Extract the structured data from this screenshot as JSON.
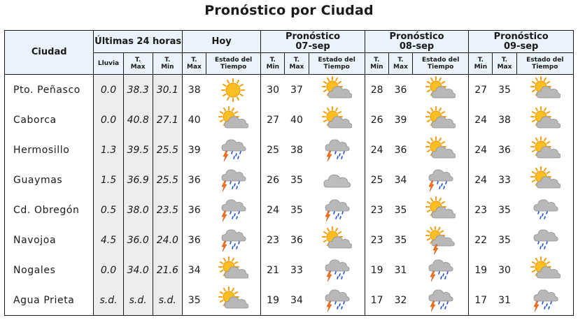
{
  "title": "Pronóstico por Ciudad",
  "headers": {
    "city": "Ciudad",
    "last24": "Últimas 24 horas",
    "today": "Hoy",
    "forecasts": [
      {
        "line1": "Pronóstico",
        "line2": "07-sep"
      },
      {
        "line1": "Pronóstico",
        "line2": "08-sep"
      },
      {
        "line1": "Pronóstico",
        "line2": "09-sep"
      }
    ],
    "rain": "Lluvia",
    "tmax_a": "T.",
    "tmax_b": "Max",
    "tmin_a": "T.",
    "tmin_b": "Min",
    "state_a": "Estado del",
    "state_b": "Tiempo"
  },
  "rows": [
    {
      "city": "Pto. Peñasco",
      "rain": "0.0",
      "tmax": "38.3",
      "tmin": "30.1",
      "today": {
        "tmax": "38",
        "icon": "sunny-icon"
      },
      "f": [
        {
          "tmin": "30",
          "tmax": "37",
          "icon": "sun-cloud-icon"
        },
        {
          "tmin": "28",
          "tmax": "36",
          "icon": "sun-cloud-icon"
        },
        {
          "tmin": "27",
          "tmax": "35",
          "icon": "sun-cloud-icon"
        }
      ]
    },
    {
      "city": "Caborca",
      "rain": "0.0",
      "tmax": "40.8",
      "tmin": "27.1",
      "today": {
        "tmax": "40",
        "icon": "sun-cloud-icon"
      },
      "f": [
        {
          "tmin": "27",
          "tmax": "40",
          "icon": "sun-cloud-icon"
        },
        {
          "tmin": "26",
          "tmax": "39",
          "icon": "sun-cloud-icon"
        },
        {
          "tmin": "24",
          "tmax": "38",
          "icon": "sun-cloud-icon"
        }
      ]
    },
    {
      "city": "Hermosillo",
      "rain": "1.3",
      "tmax": "39.5",
      "tmin": "25.5",
      "today": {
        "tmax": "39",
        "icon": "storm-icon"
      },
      "f": [
        {
          "tmin": "25",
          "tmax": "38",
          "icon": "storm-icon"
        },
        {
          "tmin": "24",
          "tmax": "36",
          "icon": "sun-cloud-icon"
        },
        {
          "tmin": "24",
          "tmax": "36",
          "icon": "sun-cloud-icon"
        }
      ]
    },
    {
      "city": "Guaymas",
      "rain": "1.5",
      "tmax": "36.9",
      "tmin": "25.5",
      "today": {
        "tmax": "36",
        "icon": "storm-rain-icon"
      },
      "f": [
        {
          "tmin": "26",
          "tmax": "35",
          "icon": "cloud-icon"
        },
        {
          "tmin": "25",
          "tmax": "34",
          "icon": "storm-rain-icon"
        },
        {
          "tmin": "24",
          "tmax": "33",
          "icon": "sun-cloud-icon"
        }
      ]
    },
    {
      "city": "Cd. Obregón",
      "rain": "0.5",
      "tmax": "38.0",
      "tmin": "23.5",
      "today": {
        "tmax": "36",
        "icon": "storm-rain-icon"
      },
      "f": [
        {
          "tmin": "24",
          "tmax": "35",
          "icon": "storm-rain-icon"
        },
        {
          "tmin": "23",
          "tmax": "35",
          "icon": "sun-cloud-icon"
        },
        {
          "tmin": "23",
          "tmax": "35",
          "icon": "rain-icon"
        }
      ]
    },
    {
      "city": "Navojoa",
      "rain": "4.5",
      "tmax": "36.0",
      "tmin": "24.0",
      "today": {
        "tmax": "36",
        "icon": "storm-rain-icon"
      },
      "f": [
        {
          "tmin": "23",
          "tmax": "36",
          "icon": "sun-cloud-icon"
        },
        {
          "tmin": "23",
          "tmax": "35",
          "icon": "sun-storm-icon"
        },
        {
          "tmin": "22",
          "tmax": "35",
          "icon": "rain-icon"
        }
      ]
    },
    {
      "city": "Nogales",
      "rain": "0.0",
      "tmax": "34.0",
      "tmin": "21.6",
      "today": {
        "tmax": "34",
        "icon": "sun-cloud-icon"
      },
      "f": [
        {
          "tmin": "21",
          "tmax": "33",
          "icon": "storm-icon"
        },
        {
          "tmin": "19",
          "tmax": "31",
          "icon": "storm-icon"
        },
        {
          "tmin": "19",
          "tmax": "30",
          "icon": "sun-cloud-icon"
        }
      ]
    },
    {
      "city": "Agua Prieta",
      "rain": "s.d.",
      "tmax": "s.d.",
      "tmin": "s.d.",
      "today": {
        "tmax": "35",
        "icon": "sun-cloud-icon"
      },
      "f": [
        {
          "tmin": "19",
          "tmax": "34",
          "icon": "storm-icon"
        },
        {
          "tmin": "17",
          "tmax": "32",
          "icon": "storm-icon"
        },
        {
          "tmin": "17",
          "tmax": "31",
          "icon": "storm-rain-icon"
        }
      ]
    }
  ]
}
